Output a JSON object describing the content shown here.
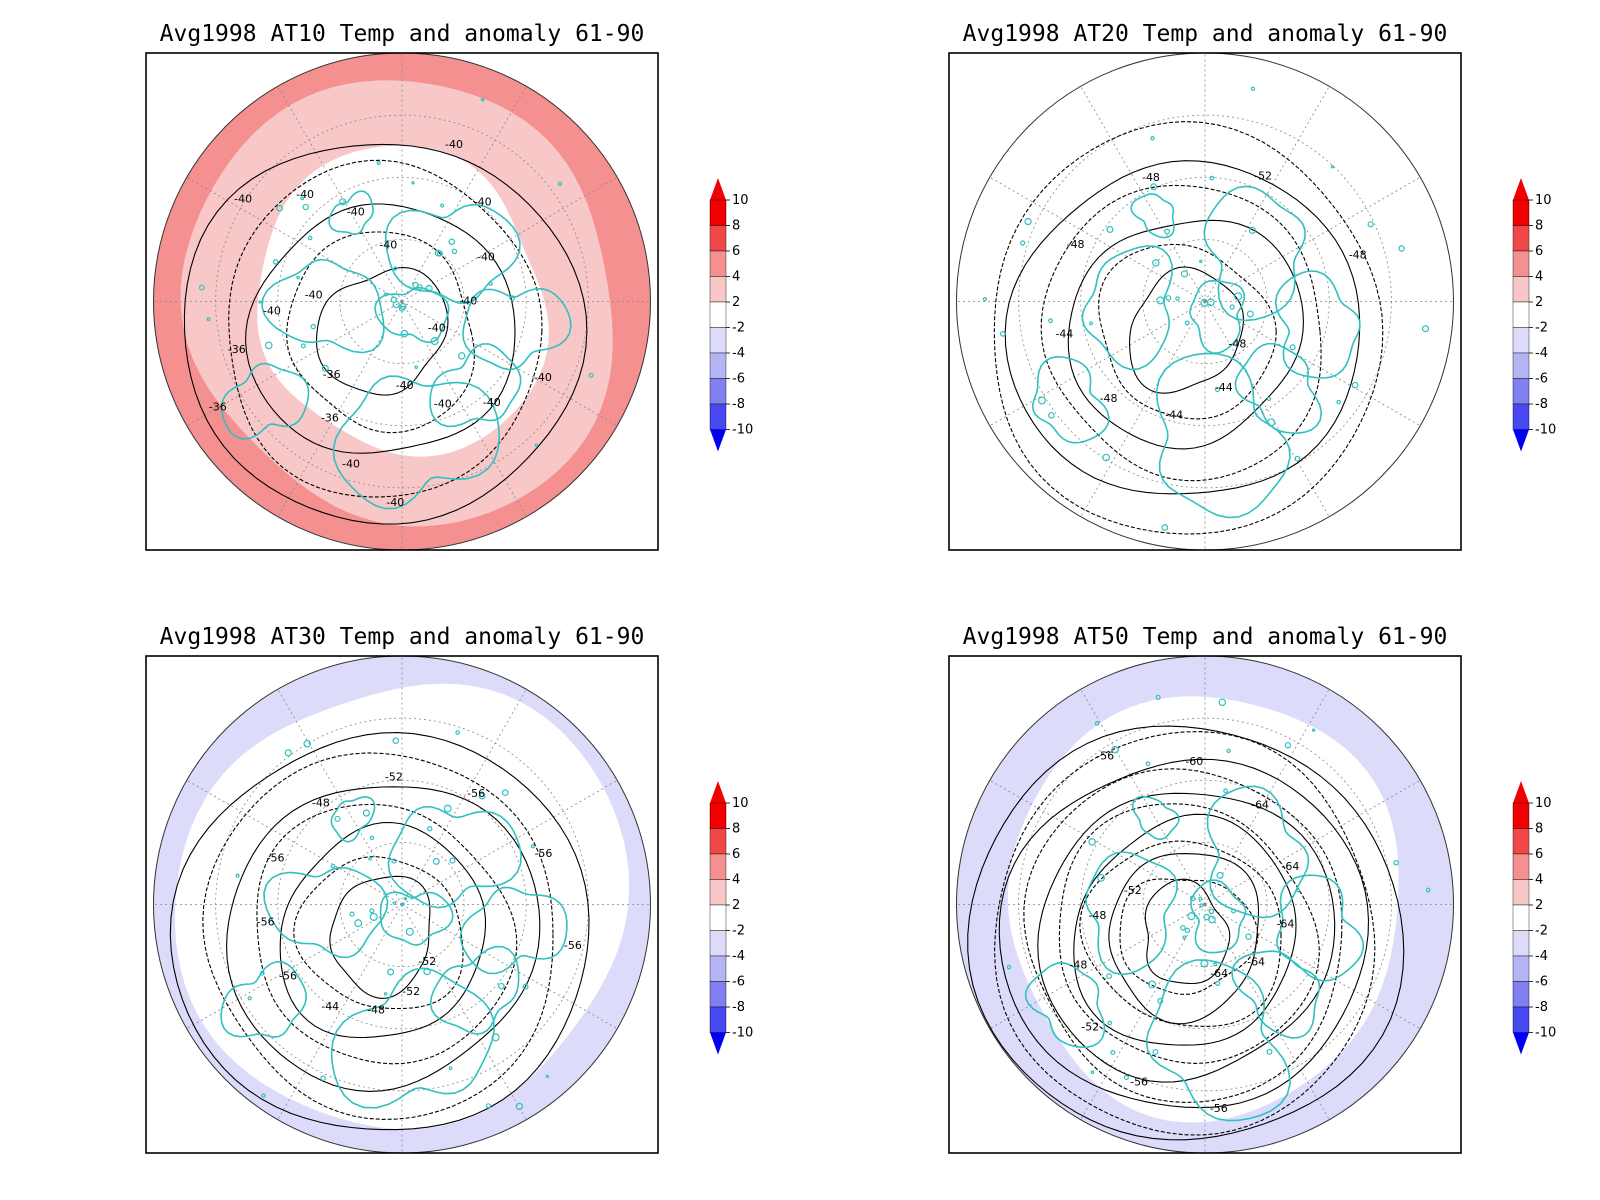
{
  "panels": [
    {
      "title": "Avg1998 AT10 Temp and anomaly 61-90",
      "anomaly_rings": [
        {
          "r_frac": [
            0.6,
            1.0
          ],
          "anomaly": 2
        },
        {
          "r_frac": [
            0.88,
            1.0
          ],
          "anomaly": 4
        }
      ],
      "contour_labels": [
        "-40",
        "-40",
        "-40",
        "-40",
        "-40",
        "-40",
        "-40",
        "-36",
        "-36",
        "-36",
        "-36",
        "-40",
        "-40",
        "-40",
        "-40",
        "-40",
        "-40",
        "-40",
        "-40",
        "-40",
        "-40"
      ],
      "n_contours": 5
    },
    {
      "title": "Avg1998 AT20 Temp and anomaly 61-90",
      "anomaly_rings": [],
      "contour_labels": [
        "-48",
        "-44",
        "-44",
        "-48",
        "-44",
        "-48",
        "-48",
        "-52",
        "-48"
      ],
      "n_contours": 6
    },
    {
      "title": "Avg1998 AT30 Temp and anomaly 61-90",
      "anomaly_rings": [
        {
          "r_frac": [
            0.9,
            1.0
          ],
          "anomaly": -2
        }
      ],
      "contour_labels": [
        "-52",
        "-52",
        "-48",
        "-44",
        "-56",
        "-56",
        "-56",
        "-48",
        "-52",
        "-56",
        "-56",
        "-56"
      ],
      "n_contours": 7
    },
    {
      "title": "Avg1998 AT50 Temp and anomaly 61-90",
      "anomaly_rings": [
        {
          "r_frac": [
            0.82,
            1.0
          ],
          "anomaly": -2
        }
      ],
      "contour_labels": [
        "-64",
        "-56",
        "-56",
        "-52",
        "-48",
        "-48",
        "-52",
        "-56",
        "-60",
        "-64",
        "-64",
        "-64",
        "-64"
      ],
      "n_contours": 11
    }
  ],
  "colorbar": {
    "ticks": [
      "10",
      "8",
      "6",
      "4",
      "2",
      "-2",
      "-4",
      "-6",
      "-8",
      "-10"
    ],
    "bins": [
      {
        "range": "8 to 10",
        "color": "#f00000"
      },
      {
        "range": "6 to 8",
        "color": "#f04848"
      },
      {
        "range": "4 to 6",
        "color": "#f49090"
      },
      {
        "range": "2 to 4",
        "color": "#f8c8c8"
      },
      {
        "range": "-2 to 2",
        "color": "#ffffff"
      },
      {
        "range": "-4 to -2",
        "color": "#dcdcfa"
      },
      {
        "range": "-6 to -4",
        "color": "#b4b4f4"
      },
      {
        "range": "-8 to -6",
        "color": "#8080f0"
      },
      {
        "range": "-10 to -8",
        "color": "#4848f0"
      },
      {
        "range": "< -10",
        "color": "#0000f0"
      }
    ],
    "over_color": "#f00000",
    "under_color": "#0000f0"
  },
  "style": {
    "coast_color": "#30c0c0",
    "contour_color": "#000000",
    "grid_color": "#888888"
  }
}
